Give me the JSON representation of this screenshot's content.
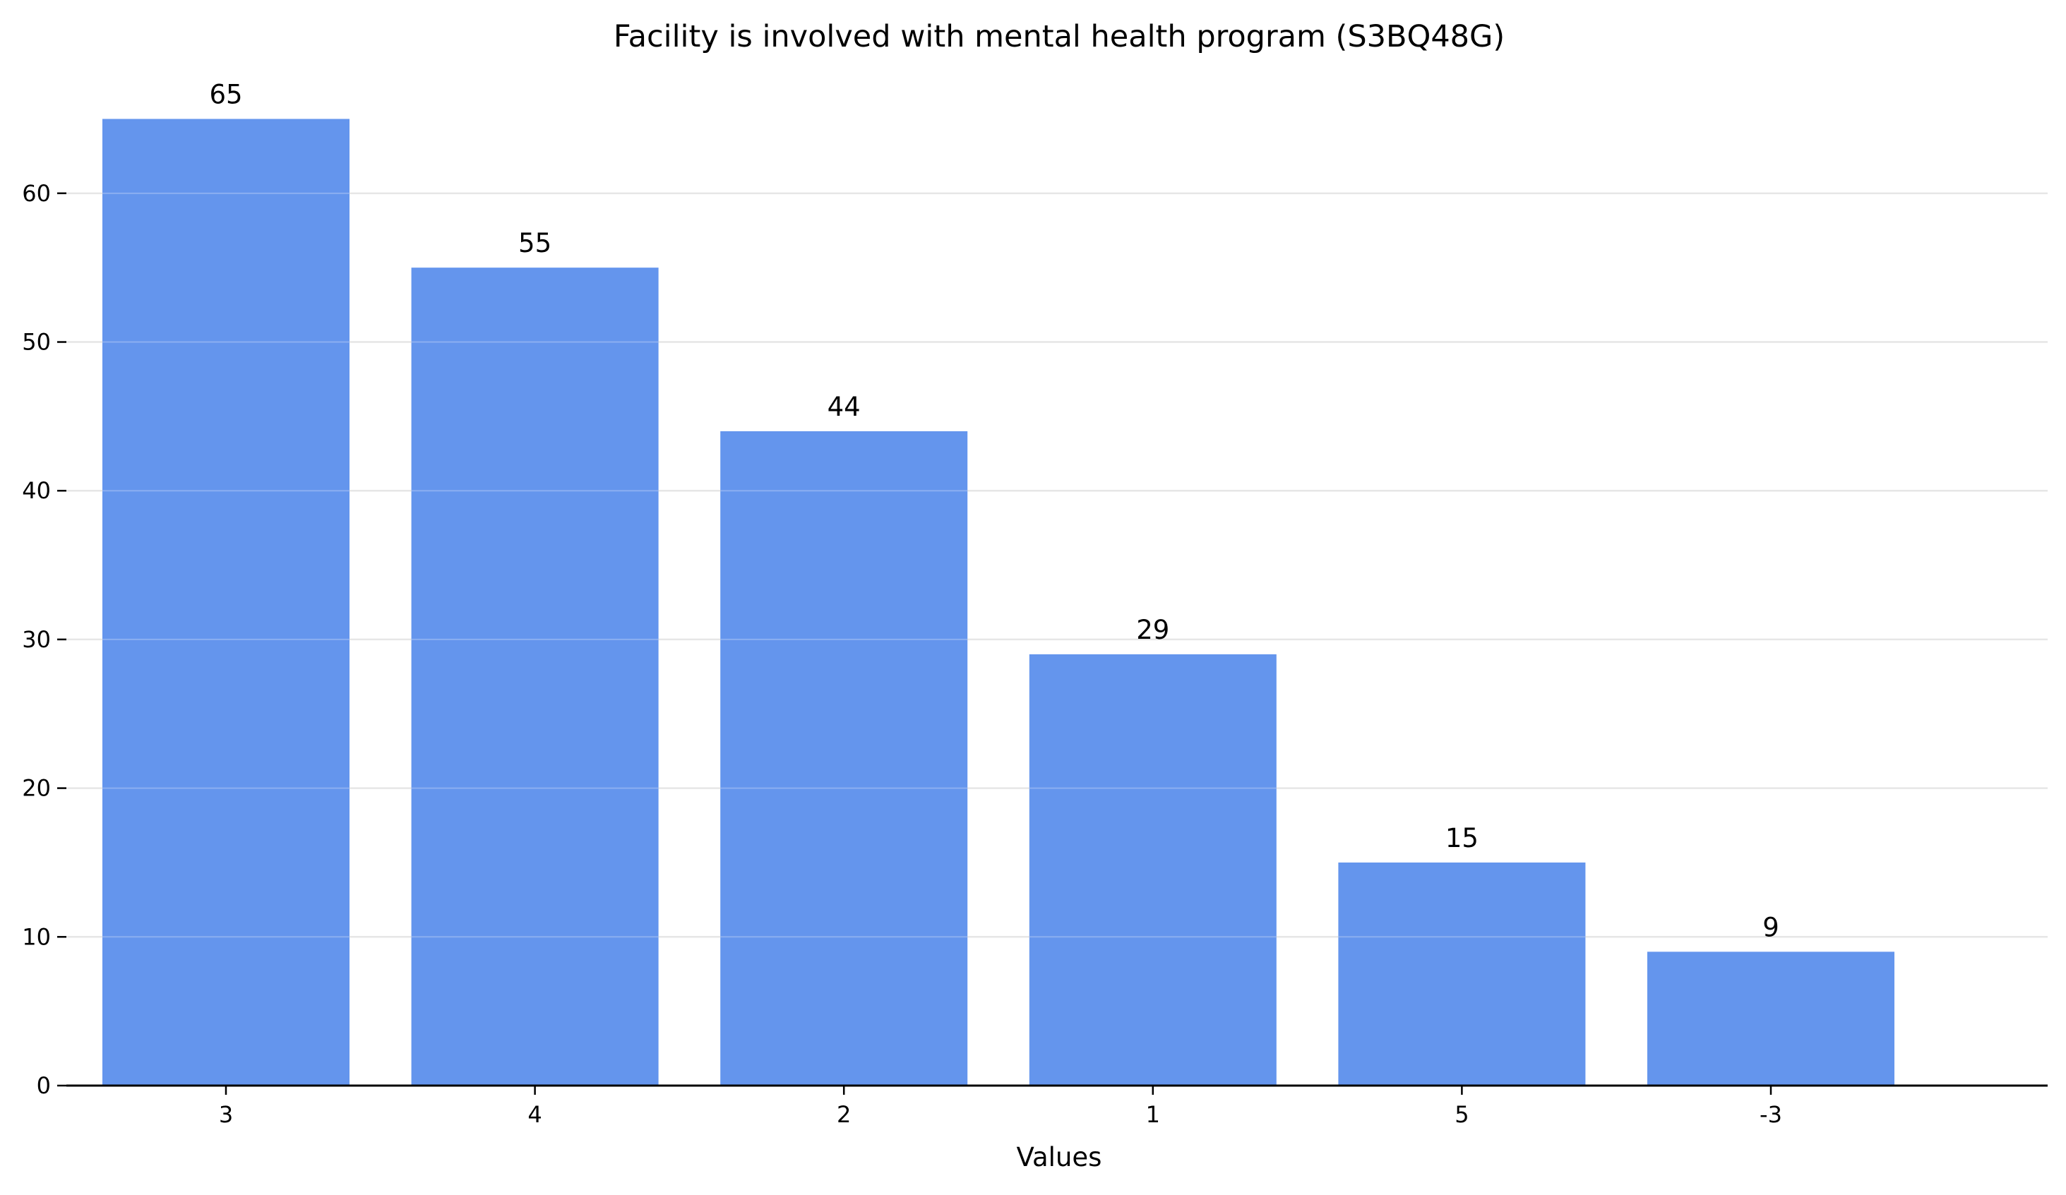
{
  "chart_data": {
    "type": "bar",
    "title": "Facility is involved with mental health program (S3BQ48G)",
    "xlabel": "Values",
    "ylabel": "",
    "categories": [
      "3",
      "4",
      "2",
      "1",
      "5",
      "-3"
    ],
    "values": [
      65,
      55,
      44,
      29,
      15,
      9
    ],
    "ylim": [
      0,
      68.25
    ],
    "yticks": [
      0,
      10,
      20,
      30,
      40,
      50,
      60
    ],
    "grid": "y-axis horizontal lines",
    "legend": "none",
    "colors": {
      "bar": "#6495ED",
      "grid": "#e6e6e6",
      "axis": "#000000"
    }
  }
}
